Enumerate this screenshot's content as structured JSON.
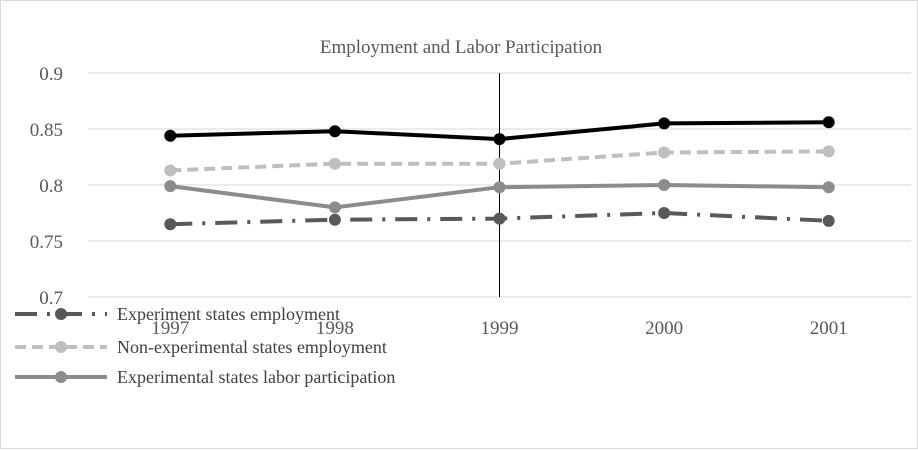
{
  "chart_data": {
    "type": "line",
    "title": "Employment and Labor Participation",
    "xlabel": "",
    "ylabel": "",
    "categories": [
      "1997",
      "1998",
      "1999",
      "2000",
      "2001"
    ],
    "y_ticks": [
      "0.7",
      "0.75",
      "0.8",
      "0.85",
      "0.9"
    ],
    "ylim": [
      0.7,
      0.9
    ],
    "grid": true,
    "vertical_marker_at": "1999",
    "legend_placement": "bottom-left",
    "series": [
      {
        "name": "Experiment states employment",
        "values": [
          0.765,
          0.769,
          0.77,
          0.775,
          0.768
        ],
        "color": "#595959",
        "dash": "dash-dot"
      },
      {
        "name": "Non-experimental states employment",
        "values": [
          0.813,
          0.819,
          0.819,
          0.829,
          0.83
        ],
        "color": "#bfbfbf",
        "dash": "dash"
      },
      {
        "name": "Experimental states labor participation",
        "values": [
          0.799,
          0.78,
          0.798,
          0.8,
          0.798
        ],
        "color": "#8c8c8c",
        "dash": "solid"
      },
      {
        "name": "",
        "values": [
          0.844,
          0.848,
          0.841,
          0.855,
          0.856
        ],
        "color": "#000000",
        "dash": "solid"
      }
    ]
  }
}
